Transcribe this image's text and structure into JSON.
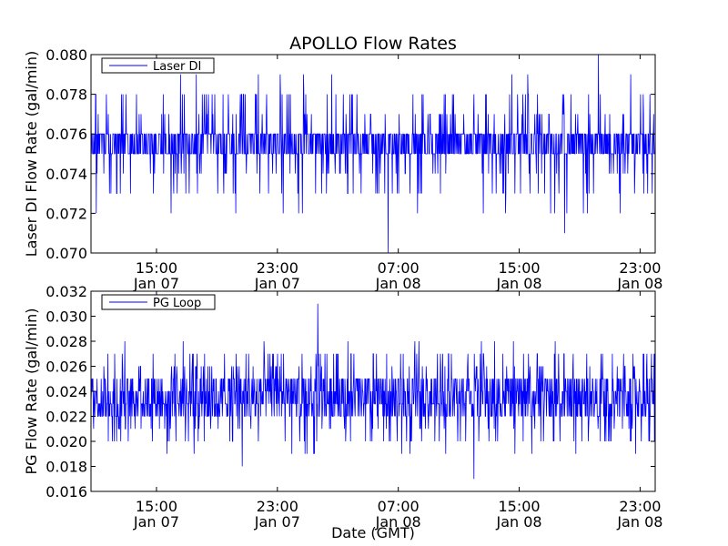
{
  "figure": {
    "title": "APOLLO Flow Rates",
    "xlabel": "Date (GMT)",
    "line_color": "#0000ff",
    "background": "#ffffff",
    "axes_color": "#000000"
  },
  "chart_data": [
    {
      "type": "line",
      "title": "APOLLO Flow Rates",
      "xlabel": "",
      "ylabel": "Laser DI Flow Rate (gal/min)",
      "legend": {
        "placement": "top-left",
        "entries": [
          "Laser DI"
        ]
      },
      "grid": false,
      "xlim": [
        "2007-01-07T10:40",
        "2007-01-09T00:00"
      ],
      "x_ticks": [
        {
          "time": "2007-01-07T15:00",
          "line1": "15:00",
          "line2": "Jan 07"
        },
        {
          "time": "2007-01-07T23:00",
          "line1": "23:00",
          "line2": "Jan 07"
        },
        {
          "time": "2007-01-08T07:00",
          "line1": "07:00",
          "line2": "Jan 08"
        },
        {
          "time": "2007-01-08T15:00",
          "line1": "15:00",
          "line2": "Jan 08"
        },
        {
          "time": "2007-01-08T23:00",
          "line1": "23:00",
          "line2": "Jan 08"
        }
      ],
      "ylim": [
        0.07,
        0.08
      ],
      "y_ticks": [
        "0.070",
        "0.072",
        "0.074",
        "0.076",
        "0.078",
        "0.080"
      ],
      "series": [
        {
          "name": "Laser DI",
          "color": "#0000ff",
          "resolution": 0.001,
          "baseline": 0.0755,
          "band": [
            0.075,
            0.076
          ],
          "excursions": [
            {
              "time": "2007-01-08T06:20",
              "value": 0.07
            },
            {
              "time": "2007-01-08T20:15",
              "value": 0.08
            },
            {
              "time": "2007-01-08T18:00",
              "value": 0.071
            }
          ]
        }
      ]
    },
    {
      "type": "line",
      "title": "",
      "xlabel": "Date (GMT)",
      "ylabel": "PG Flow Rate (gal/min)",
      "legend": {
        "placement": "top-left",
        "entries": [
          "PG Loop"
        ]
      },
      "grid": false,
      "xlim": [
        "2007-01-07T10:40",
        "2007-01-09T00:00"
      ],
      "x_ticks": [
        {
          "time": "2007-01-07T15:00",
          "line1": "15:00",
          "line2": "Jan 07"
        },
        {
          "time": "2007-01-07T23:00",
          "line1": "23:00",
          "line2": "Jan 07"
        },
        {
          "time": "2007-01-08T07:00",
          "line1": "07:00",
          "line2": "Jan 08"
        },
        {
          "time": "2007-01-08T15:00",
          "line1": "15:00",
          "line2": "Jan 08"
        },
        {
          "time": "2007-01-08T23:00",
          "line1": "23:00",
          "line2": "Jan 08"
        }
      ],
      "ylim": [
        0.016,
        0.032
      ],
      "y_ticks": [
        "0.016",
        "0.018",
        "0.020",
        "0.022",
        "0.024",
        "0.026",
        "0.028",
        "0.030",
        "0.032"
      ],
      "series": [
        {
          "name": "PG Loop",
          "color": "#0000ff",
          "resolution": 0.001,
          "baseline": 0.0235,
          "band": [
            0.022,
            0.025
          ],
          "excursions": [
            {
              "time": "2007-01-08T12:00",
              "value": 0.017
            },
            {
              "time": "2007-01-08T01:40",
              "value": 0.031
            },
            {
              "time": "2007-01-07T20:40",
              "value": 0.018
            }
          ]
        }
      ]
    }
  ]
}
